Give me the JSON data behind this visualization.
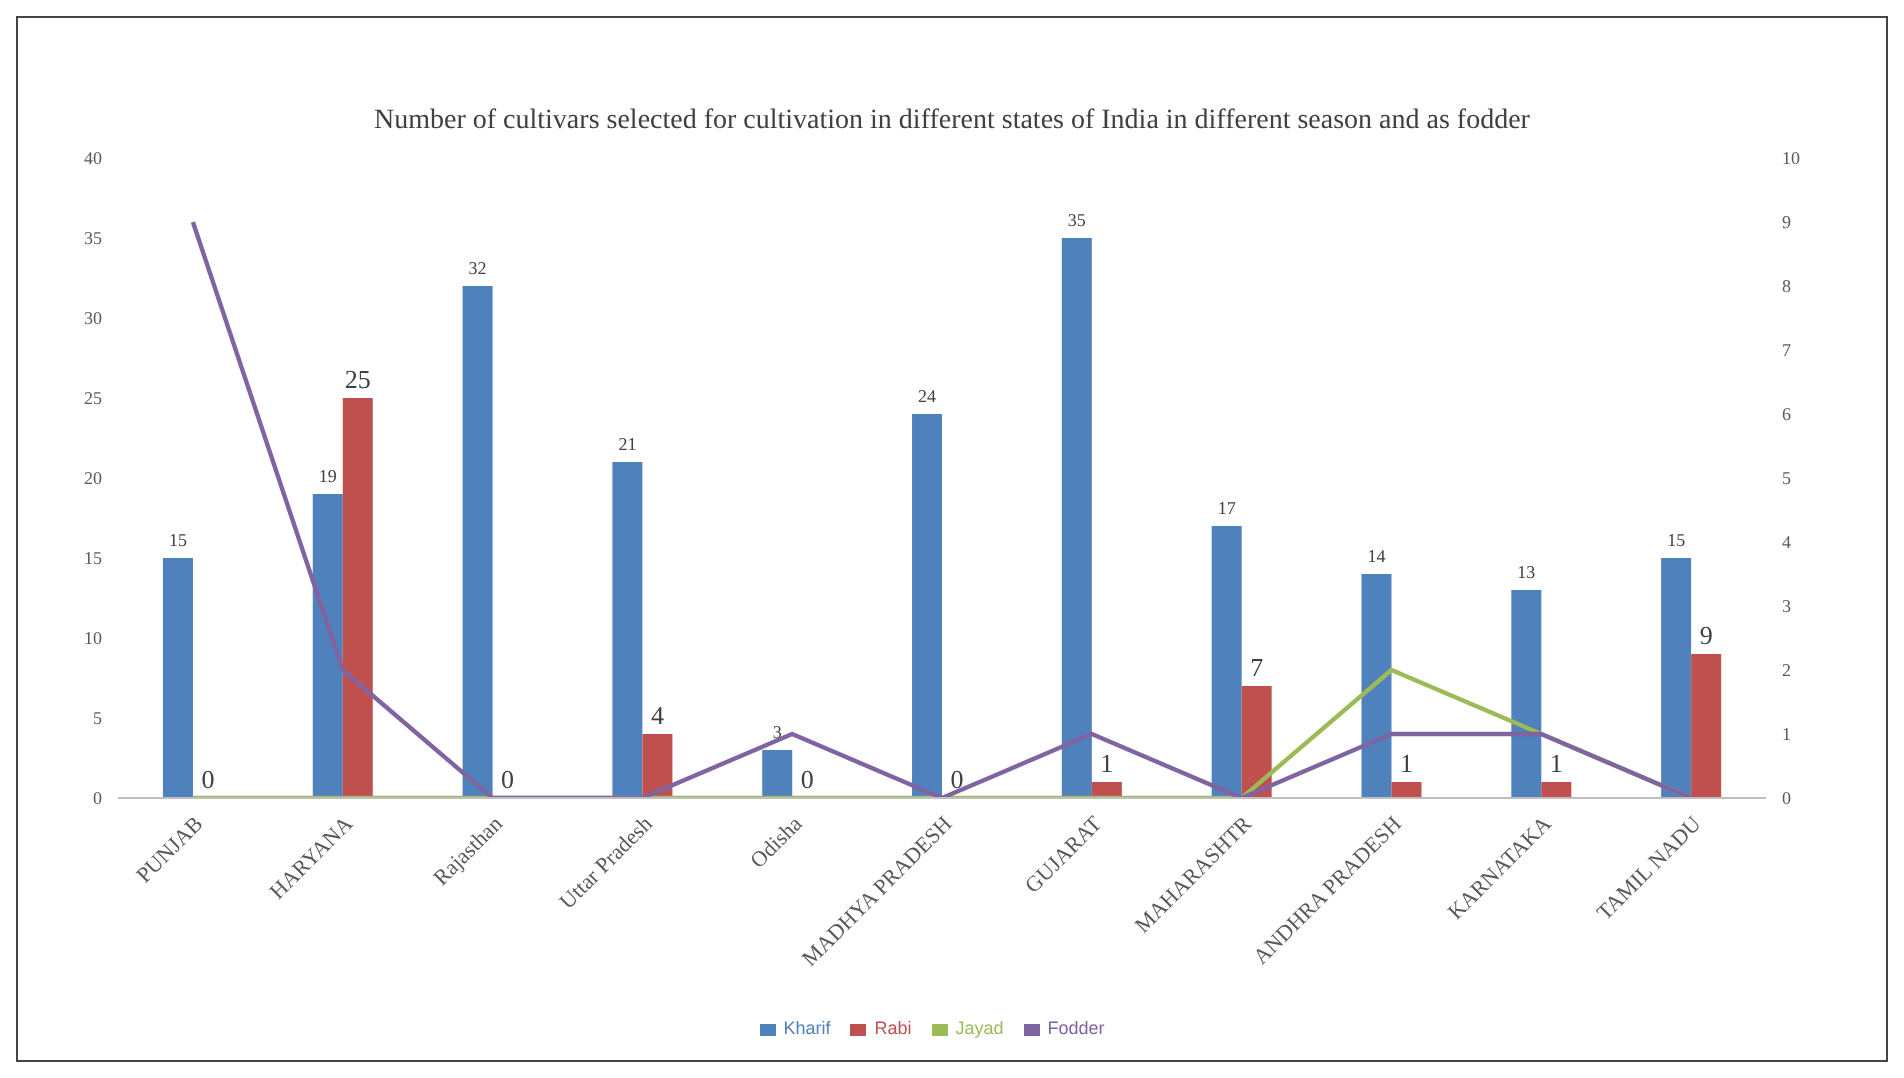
{
  "chart_data": {
    "type": "bar",
    "title": "Number of cultivars selected for cultivation  in different states of India in different season and as fodder",
    "categories": [
      "PUNJAB",
      "HARYANA",
      "Rajasthan",
      "Uttar Pradesh",
      "Odisha",
      "MADHYA PRADESH",
      "GUJARAT",
      "MAHARASHTR",
      "ANDHRA PRADESH",
      "KARNATAKA",
      "TAMIL NADU"
    ],
    "series": [
      {
        "name": "Kharif",
        "color": "#4f81bd",
        "values": [
          15,
          19,
          32,
          21,
          3,
          24,
          35,
          17,
          14,
          13,
          15
        ],
        "value_labels": [
          "15",
          "19",
          "32",
          "21",
          "3",
          "24",
          "35",
          "17",
          "14",
          "13",
          "15"
        ]
      },
      {
        "name": "Rabi",
        "color": "#c0504d",
        "values": [
          0,
          25,
          0,
          4,
          0,
          0,
          1,
          7,
          1,
          1,
          9
        ],
        "value_labels": [
          "0",
          "25",
          "0",
          "4",
          "0",
          "0",
          "1",
          "7",
          "1",
          "1",
          "9"
        ]
      },
      {
        "name": "Jayad",
        "type": "line",
        "axis": "y2",
        "color": "#9bbb59",
        "values": [
          0,
          0,
          0,
          0,
          0,
          0,
          0,
          0,
          2,
          1,
          0
        ]
      },
      {
        "name": "Fodder",
        "type": "line",
        "axis": "y2",
        "color": "#8064a2",
        "values": [
          9,
          2,
          0,
          0,
          1,
          0,
          1,
          0,
          1,
          1,
          0
        ]
      }
    ],
    "ylim": [
      0,
      40
    ],
    "yticks": [
      0,
      5,
      10,
      15,
      20,
      25,
      30,
      35,
      40
    ],
    "y2lim": [
      0,
      10
    ],
    "y2ticks": [
      0,
      1,
      2,
      3,
      4,
      5,
      6,
      7,
      8,
      9,
      10
    ],
    "grid": false,
    "legend": "bottom",
    "marker": "none"
  }
}
